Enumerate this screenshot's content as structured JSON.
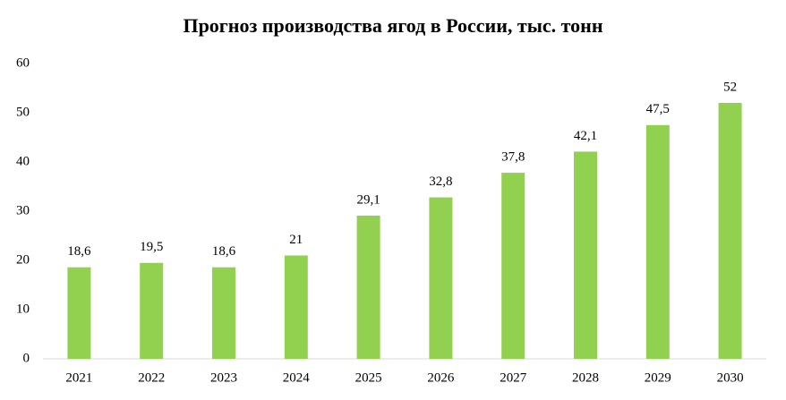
{
  "chart_data": {
    "type": "bar",
    "title": "Прогноз производства ягод в России, тыс. тонн",
    "categories": [
      "2021",
      "2022",
      "2023",
      "2024",
      "2025",
      "2026",
      "2027",
      "2028",
      "2029",
      "2030"
    ],
    "values": [
      18.6,
      19.5,
      18.6,
      21,
      29.1,
      32.8,
      37.8,
      42.1,
      47.5,
      52
    ],
    "value_labels": [
      "18,6",
      "19,5",
      "18,6",
      "21",
      "29,1",
      "32,8",
      "37,8",
      "42,1",
      "47,5",
      "52"
    ],
    "color": "#92d050",
    "ylim": [
      0,
      60
    ],
    "yticks": [
      0,
      10,
      20,
      30,
      40,
      50,
      60
    ],
    "grid": false
  }
}
